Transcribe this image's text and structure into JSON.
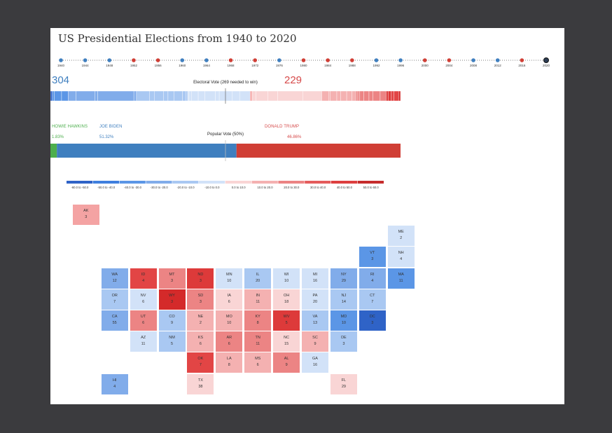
{
  "title": "US Presidential Elections from 1940 to 2020",
  "timeline": {
    "years": [
      "1940",
      "1944",
      "1948",
      "1952",
      "1956",
      "1960",
      "1964",
      "1968",
      "1972",
      "1976",
      "1980",
      "1984",
      "1988",
      "1992",
      "1996",
      "2000",
      "2004",
      "2008",
      "2012",
      "2016",
      "2020"
    ],
    "winner_party": [
      "D",
      "D",
      "D",
      "R",
      "R",
      "D",
      "D",
      "R",
      "R",
      "D",
      "R",
      "R",
      "R",
      "D",
      "D",
      "R",
      "R",
      "D",
      "D",
      "R",
      "D"
    ],
    "selected": "2020"
  },
  "colors": {
    "dem": "#3f7fbf",
    "rep": "#d03e35",
    "green": "#4cae4c",
    "dem_text": "#3f7fbf",
    "rep_text": "#d64a4a"
  },
  "electoral": {
    "dem_votes": "304",
    "rep_votes": "229",
    "label": "Electoral Vote (269 needed to win)"
  },
  "candidates": {
    "green": {
      "name": "HOWIE HAWKINS",
      "pct": "1.83%"
    },
    "dem": {
      "name": "JOE BIDEN",
      "pct": "51.32%"
    },
    "rep": {
      "name": "DONALD TRUMP",
      "pct": "46.86%"
    }
  },
  "popular": {
    "label": "Popular Vote (50%)"
  },
  "legend": {
    "bins": [
      "-60.0 to -50.0",
      "-50.0 to -40.0",
      "-40.0 to -30.0",
      "-30.0 to -20.0",
      "-20.0 to -10.0",
      "-10.0 to 0.0",
      "0.0 to 10.0",
      "10.0 to 20.0",
      "20.0 to 30.0",
      "30.0 to 40.0",
      "40.0 to 50.0",
      "50.0 to 60.0"
    ],
    "colors": [
      "#2f63c7",
      "#3f7fde",
      "#5b96e6",
      "#81acea",
      "#a9c8f2",
      "#d2e2f8",
      "#f9d5d5",
      "#f4b1b1",
      "#ec8484",
      "#e45c5c",
      "#dd3f3f",
      "#c62c2c"
    ]
  },
  "chart_data": {
    "type": "heatmap",
    "title": "US Presidential Elections from 1940 to 2020",
    "states": [
      {
        "abbr": "AK",
        "ev": "3",
        "col": 2,
        "row": 0,
        "color": "#f4a3a3"
      },
      {
        "abbr": "ME",
        "ev": "2",
        "col": 13,
        "row": 1,
        "color": "#d2e2f8"
      },
      {
        "abbr": "VT",
        "ev": "3",
        "col": 12,
        "row": 2,
        "color": "#5b96e6"
      },
      {
        "abbr": "NH",
        "ev": "4",
        "col": 13,
        "row": 2,
        "color": "#d2e2f8"
      },
      {
        "abbr": "WA",
        "ev": "12",
        "col": 3,
        "row": 3,
        "color": "#81acea"
      },
      {
        "abbr": "ID",
        "ev": "4",
        "col": 4,
        "row": 3,
        "color": "#e24545"
      },
      {
        "abbr": "MT",
        "ev": "3",
        "col": 5,
        "row": 3,
        "color": "#ec8484"
      },
      {
        "abbr": "ND",
        "ev": "3",
        "col": 6,
        "row": 3,
        "color": "#dd3a3a"
      },
      {
        "abbr": "MN",
        "ev": "10",
        "col": 7,
        "row": 3,
        "color": "#d2e2f8"
      },
      {
        "abbr": "IL",
        "ev": "20",
        "col": 8,
        "row": 3,
        "color": "#a9c8f2"
      },
      {
        "abbr": "WI",
        "ev": "10",
        "col": 9,
        "row": 3,
        "color": "#d2e2f8"
      },
      {
        "abbr": "MI",
        "ev": "16",
        "col": 10,
        "row": 3,
        "color": "#d2e2f8"
      },
      {
        "abbr": "NY",
        "ev": "29",
        "col": 11,
        "row": 3,
        "color": "#81acea"
      },
      {
        "abbr": "RI",
        "ev": "4",
        "col": 12,
        "row": 3,
        "color": "#81acea"
      },
      {
        "abbr": "MA",
        "ev": "11",
        "col": 13,
        "row": 3,
        "color": "#5b96e6"
      },
      {
        "abbr": "OR",
        "ev": "7",
        "col": 3,
        "row": 4,
        "color": "#a9c8f2"
      },
      {
        "abbr": "NV",
        "ev": "6",
        "col": 4,
        "row": 4,
        "color": "#d2e2f8"
      },
      {
        "abbr": "WY",
        "ev": "3",
        "col": 5,
        "row": 4,
        "color": "#d42a2a"
      },
      {
        "abbr": "SD",
        "ev": "3",
        "col": 6,
        "row": 4,
        "color": "#ec8484"
      },
      {
        "abbr": "IA",
        "ev": "6",
        "col": 7,
        "row": 4,
        "color": "#f9d5d5"
      },
      {
        "abbr": "IN",
        "ev": "11",
        "col": 8,
        "row": 4,
        "color": "#f4b1b1"
      },
      {
        "abbr": "OH",
        "ev": "18",
        "col": 9,
        "row": 4,
        "color": "#f9d5d5"
      },
      {
        "abbr": "PA",
        "ev": "20",
        "col": 10,
        "row": 4,
        "color": "#d2e2f8"
      },
      {
        "abbr": "NJ",
        "ev": "14",
        "col": 11,
        "row": 4,
        "color": "#a9c8f2"
      },
      {
        "abbr": "CT",
        "ev": "7",
        "col": 12,
        "row": 4,
        "color": "#a9c8f2"
      },
      {
        "abbr": "CA",
        "ev": "55",
        "col": 3,
        "row": 5,
        "color": "#81acea"
      },
      {
        "abbr": "UT",
        "ev": "6",
        "col": 4,
        "row": 5,
        "color": "#ec8484"
      },
      {
        "abbr": "CO",
        "ev": "9",
        "col": 5,
        "row": 5,
        "color": "#a9c8f2"
      },
      {
        "abbr": "NE",
        "ev": "2",
        "col": 6,
        "row": 5,
        "color": "#f4b1b1"
      },
      {
        "abbr": "MO",
        "ev": "10",
        "col": 7,
        "row": 5,
        "color": "#f4b1b1"
      },
      {
        "abbr": "KY",
        "ev": "8",
        "col": 8,
        "row": 5,
        "color": "#ec8484"
      },
      {
        "abbr": "WV",
        "ev": "5",
        "col": 9,
        "row": 5,
        "color": "#dd3a3a"
      },
      {
        "abbr": "VA",
        "ev": "13",
        "col": 10,
        "row": 5,
        "color": "#a9c8f2"
      },
      {
        "abbr": "MD",
        "ev": "10",
        "col": 11,
        "row": 5,
        "color": "#5b96e6"
      },
      {
        "abbr": "DC",
        "ev": "3",
        "col": 12,
        "row": 5,
        "color": "#2f63c7"
      },
      {
        "abbr": "AZ",
        "ev": "11",
        "col": 4,
        "row": 6,
        "color": "#d2e2f8"
      },
      {
        "abbr": "NM",
        "ev": "5",
        "col": 5,
        "row": 6,
        "color": "#a9c8f2"
      },
      {
        "abbr": "KS",
        "ev": "6",
        "col": 6,
        "row": 6,
        "color": "#f4b1b1"
      },
      {
        "abbr": "AR",
        "ev": "6",
        "col": 7,
        "row": 6,
        "color": "#ec8484"
      },
      {
        "abbr": "TN",
        "ev": "11",
        "col": 8,
        "row": 6,
        "color": "#ec8484"
      },
      {
        "abbr": "NC",
        "ev": "15",
        "col": 9,
        "row": 6,
        "color": "#f9d5d5"
      },
      {
        "abbr": "SC",
        "ev": "9",
        "col": 10,
        "row": 6,
        "color": "#f4b1b1"
      },
      {
        "abbr": "DE",
        "ev": "3",
        "col": 11,
        "row": 6,
        "color": "#a9c8f2"
      },
      {
        "abbr": "OK",
        "ev": "7",
        "col": 6,
        "row": 7,
        "color": "#e24545"
      },
      {
        "abbr": "LA",
        "ev": "8",
        "col": 7,
        "row": 7,
        "color": "#f4b1b1"
      },
      {
        "abbr": "MS",
        "ev": "6",
        "col": 8,
        "row": 7,
        "color": "#f4b1b1"
      },
      {
        "abbr": "AL",
        "ev": "9",
        "col": 9,
        "row": 7,
        "color": "#ec8484"
      },
      {
        "abbr": "GA",
        "ev": "16",
        "col": 10,
        "row": 7,
        "color": "#d2e2f8"
      },
      {
        "abbr": "HI",
        "ev": "4",
        "col": 3,
        "row": 8,
        "color": "#81acea"
      },
      {
        "abbr": "TX",
        "ev": "38",
        "col": 6,
        "row": 8,
        "color": "#f9d5d5"
      },
      {
        "abbr": "FL",
        "ev": "29",
        "col": 11,
        "row": 8,
        "color": "#f9d5d5"
      }
    ]
  }
}
